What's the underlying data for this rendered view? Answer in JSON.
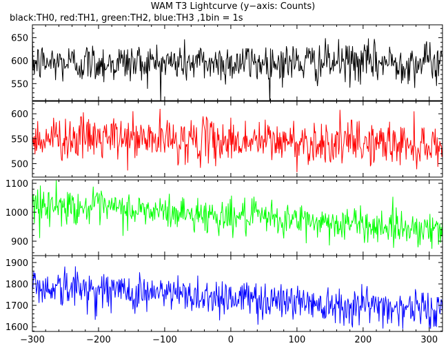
{
  "chart_data": {
    "type": "line",
    "title": "WAM T3 Lightcurve (y−axis: Counts)",
    "subtitle": "black:TH0, red:TH1, green:TH2, blue:TH3 ,1bin = 1s",
    "x_range": [
      -300,
      320
    ],
    "xticks": [
      -300,
      -200,
      -100,
      0,
      100,
      200,
      300
    ],
    "xtick_labels": [
      "−300",
      "−200",
      "−100",
      "0",
      "100",
      "200",
      "300"
    ],
    "x_minor_step": 20,
    "grid": false,
    "panels": [
      {
        "name": "TH0",
        "color": "#000000",
        "ylim": [
          513,
          678
        ],
        "yticks": [
          550,
          600,
          650
        ],
        "y_minor_step": 10,
        "mean_start": 595,
        "mean_end": 596,
        "noise_sd": 22
      },
      {
        "name": "TH1",
        "color": "#ff0000",
        "ylim": [
          473,
          625
        ],
        "yticks": [
          500,
          550,
          600
        ],
        "y_minor_step": 10,
        "mean_start": 553,
        "mean_end": 538,
        "noise_sd": 22
      },
      {
        "name": "TH2",
        "color": "#00ff00",
        "ylim": [
          850,
          1112
        ],
        "yticks": [
          900,
          1000,
          1100
        ],
        "y_minor_step": 20,
        "mean_start": 1028,
        "mean_end": 940,
        "noise_sd": 30
      },
      {
        "name": "TH3",
        "color": "#0000ff",
        "ylim": [
          1578,
          1932
        ],
        "yticks": [
          1600,
          1700,
          1800,
          1900
        ],
        "y_minor_step": 20,
        "mean_start": 1790,
        "mean_end": 1680,
        "noise_sd": 45
      }
    ]
  }
}
